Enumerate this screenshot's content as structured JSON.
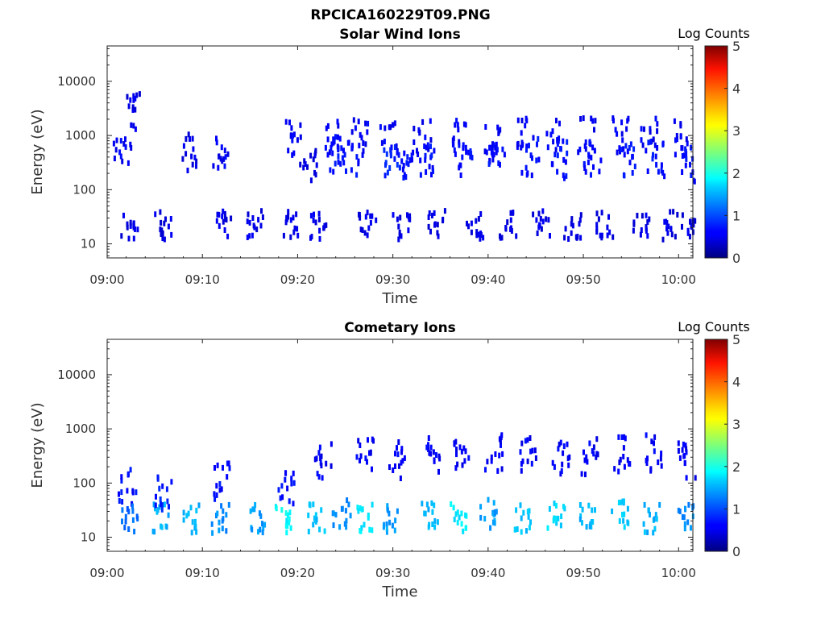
{
  "figure_title": "RPCICA160229T09.PNG",
  "colorbar": {
    "label": "Log Counts",
    "ticks": [
      "0",
      "1",
      "2",
      "3",
      "4",
      "5"
    ],
    "range": [
      0,
      5
    ],
    "colormap": "jet"
  },
  "chart_data": [
    {
      "type": "heatmap",
      "title": "Solar Wind Ions",
      "xlabel": "Time",
      "ylabel": "Energy (eV)",
      "x_ticks": [
        "09:00",
        "09:10",
        "09:20",
        "09:30",
        "09:40",
        "09:50",
        "10:00"
      ],
      "y_ticks": [
        "10",
        "100",
        "1000",
        "10000"
      ],
      "y_scale": "log",
      "ylim": [
        5.5,
        45000
      ],
      "xlim_minutes": [
        0,
        61.5
      ],
      "color_label": "Log Counts",
      "clim": [
        0,
        5
      ],
      "cells": [
        {
          "t": 1.5,
          "e": 600,
          "v": 0.2
        },
        {
          "t": 2.3,
          "e": 25,
          "v": 0.1
        },
        {
          "t": 2.8,
          "e": 3000,
          "v": 0.1
        },
        {
          "t": 5.7,
          "e": 25,
          "v": 0.1
        },
        {
          "t": 8.5,
          "e": 550,
          "v": 0.1
        },
        {
          "t": 11.8,
          "e": 550,
          "v": 0.2
        },
        {
          "t": 12.0,
          "e": 25,
          "v": 0.1
        },
        {
          "t": 15.3,
          "e": 25,
          "v": 0.1
        },
        {
          "t": 19.6,
          "e": 1050,
          "v": 0.2
        },
        {
          "t": 19.2,
          "e": 25,
          "v": 0.1
        },
        {
          "t": 21.0,
          "e": 350,
          "v": 0.1
        },
        {
          "t": 22.0,
          "e": 25,
          "v": 0.1
        },
        {
          "t": 23.5,
          "e": 1050,
          "v": 0.2
        },
        {
          "t": 23.8,
          "e": 500,
          "v": 0.3
        },
        {
          "t": 25.5,
          "e": 400,
          "v": 0.3
        },
        {
          "t": 26.5,
          "e": 1050,
          "v": 0.2
        },
        {
          "t": 27.2,
          "e": 25,
          "v": 0.1
        },
        {
          "t": 29.5,
          "e": 1100,
          "v": 0.2
        },
        {
          "t": 29.7,
          "e": 400,
          "v": 0.4
        },
        {
          "t": 30.8,
          "e": 25,
          "v": 0.1
        },
        {
          "t": 31.5,
          "e": 300,
          "v": 0.3
        },
        {
          "t": 33.0,
          "e": 1100,
          "v": 0.2
        },
        {
          "t": 33.5,
          "e": 350,
          "v": 0.3
        },
        {
          "t": 34.5,
          "e": 25,
          "v": 0.1
        },
        {
          "t": 36.8,
          "e": 1100,
          "v": 0.2
        },
        {
          "t": 37.4,
          "e": 400,
          "v": 0.3
        },
        {
          "t": 38.5,
          "e": 25,
          "v": 0.1
        },
        {
          "t": 40.3,
          "e": 1100,
          "v": 0.2
        },
        {
          "t": 40.7,
          "e": 400,
          "v": 0.3
        },
        {
          "t": 42.0,
          "e": 25,
          "v": 0.1
        },
        {
          "t": 43.8,
          "e": 1050,
          "v": 0.2
        },
        {
          "t": 44.3,
          "e": 450,
          "v": 0.3
        },
        {
          "t": 45.5,
          "e": 25,
          "v": 0.1
        },
        {
          "t": 46.9,
          "e": 1100,
          "v": 0.2
        },
        {
          "t": 47.3,
          "e": 400,
          "v": 0.3
        },
        {
          "t": 48.8,
          "e": 25,
          "v": 0.1
        },
        {
          "t": 50.2,
          "e": 1150,
          "v": 0.2
        },
        {
          "t": 50.8,
          "e": 400,
          "v": 0.3
        },
        {
          "t": 52.2,
          "e": 25,
          "v": 0.1
        },
        {
          "t": 53.8,
          "e": 1100,
          "v": 0.2
        },
        {
          "t": 54.4,
          "e": 400,
          "v": 0.3
        },
        {
          "t": 56.0,
          "e": 25,
          "v": 0.1
        },
        {
          "t": 56.8,
          "e": 1150,
          "v": 0.2
        },
        {
          "t": 57.5,
          "e": 400,
          "v": 0.3
        },
        {
          "t": 59.0,
          "e": 25,
          "v": 0.1
        },
        {
          "t": 60.2,
          "e": 1000,
          "v": 0.2
        },
        {
          "t": 60.8,
          "e": 350,
          "v": 0.3
        },
        {
          "t": 60.9,
          "e": 25,
          "v": 0.1
        }
      ]
    },
    {
      "type": "heatmap",
      "title": "Cometary Ions",
      "xlabel": "Time",
      "ylabel": "Energy (eV)",
      "x_ticks": [
        "09:00",
        "09:10",
        "09:20",
        "09:30",
        "09:40",
        "09:50",
        "10:00"
      ],
      "y_ticks": [
        "10",
        "100",
        "1000",
        "10000"
      ],
      "y_scale": "log",
      "ylim": [
        5.5,
        45000
      ],
      "xlim_minutes": [
        0,
        61.5
      ],
      "color_label": "Log Counts",
      "clim": [
        0,
        5
      ],
      "cells": [
        {
          "t": 2.0,
          "e": 100,
          "v": 0.3
        },
        {
          "t": 2.2,
          "e": 25,
          "v": 0.8
        },
        {
          "t": 5.5,
          "e": 25,
          "v": 1.2
        },
        {
          "t": 5.8,
          "e": 80,
          "v": 0.4
        },
        {
          "t": 8.8,
          "e": 25,
          "v": 1.2
        },
        {
          "t": 11.8,
          "e": 25,
          "v": 1.0
        },
        {
          "t": 12.0,
          "e": 120,
          "v": 0.3
        },
        {
          "t": 15.5,
          "e": 25,
          "v": 1.1
        },
        {
          "t": 18.5,
          "e": 25,
          "v": 1.6
        },
        {
          "t": 18.7,
          "e": 100,
          "v": 0.3
        },
        {
          "t": 21.8,
          "e": 25,
          "v": 1.3
        },
        {
          "t": 22.5,
          "e": 300,
          "v": 0.2
        },
        {
          "t": 24.5,
          "e": 30,
          "v": 1.0
        },
        {
          "t": 26.8,
          "e": 25,
          "v": 1.5
        },
        {
          "t": 27.0,
          "e": 350,
          "v": 0.2
        },
        {
          "t": 29.8,
          "e": 25,
          "v": 1.1
        },
        {
          "t": 30.2,
          "e": 300,
          "v": 0.2
        },
        {
          "t": 33.8,
          "e": 30,
          "v": 1.2
        },
        {
          "t": 34.0,
          "e": 400,
          "v": 0.2
        },
        {
          "t": 36.7,
          "e": 25,
          "v": 1.5
        },
        {
          "t": 37.2,
          "e": 350,
          "v": 0.2
        },
        {
          "t": 40.0,
          "e": 30,
          "v": 1.1
        },
        {
          "t": 40.5,
          "e": 400,
          "v": 0.2
        },
        {
          "t": 43.5,
          "e": 25,
          "v": 1.3
        },
        {
          "t": 44.0,
          "e": 350,
          "v": 0.2
        },
        {
          "t": 47.0,
          "e": 30,
          "v": 1.4
        },
        {
          "t": 47.5,
          "e": 350,
          "v": 0.2
        },
        {
          "t": 50.3,
          "e": 25,
          "v": 1.2
        },
        {
          "t": 50.5,
          "e": 350,
          "v": 0.2
        },
        {
          "t": 53.8,
          "e": 30,
          "v": 1.3
        },
        {
          "t": 54.0,
          "e": 400,
          "v": 0.2
        },
        {
          "t": 57.0,
          "e": 25,
          "v": 1.2
        },
        {
          "t": 57.3,
          "e": 400,
          "v": 0.2
        },
        {
          "t": 60.5,
          "e": 25,
          "v": 1.0
        },
        {
          "t": 60.8,
          "e": 300,
          "v": 0.2
        }
      ]
    }
  ]
}
